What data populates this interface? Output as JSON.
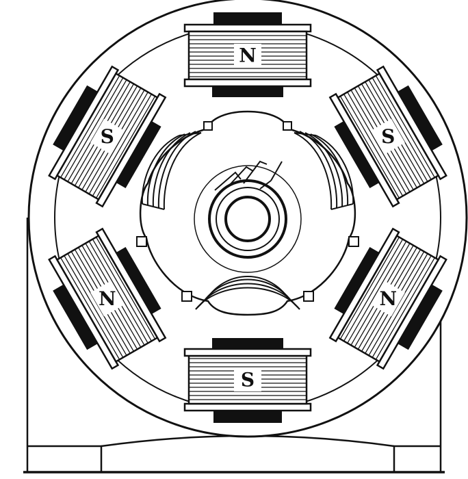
{
  "diagram": {
    "poles": [
      {
        "label": "N"
      },
      {
        "label": "S"
      },
      {
        "label": "N"
      },
      {
        "label": "S"
      },
      {
        "label": "N"
      },
      {
        "label": "S"
      }
    ]
  },
  "colors": {
    "ink": "#111111",
    "paper": "#ffffff"
  }
}
